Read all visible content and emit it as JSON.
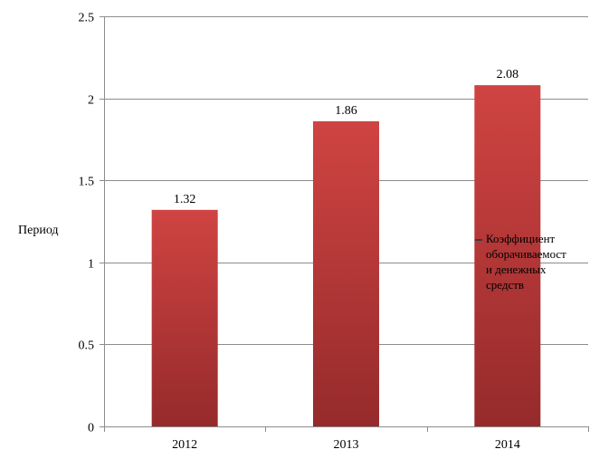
{
  "chart_data": {
    "type": "bar",
    "categories": [
      "2012",
      "2013",
      "2014"
    ],
    "series": [
      {
        "name": "Коэффициент оборачиваемости денежных средств",
        "values": [
          1.32,
          1.86,
          2.08
        ]
      }
    ],
    "data_labels": [
      "1.32",
      "1.86",
      "2.08"
    ],
    "ylabel": "Период",
    "xlabel": "",
    "ylim": [
      0,
      2.5
    ],
    "yticks": [
      0,
      0.5,
      1,
      1.5,
      2,
      2.5
    ],
    "ytick_labels": [
      "0",
      "0.5",
      "1",
      "1.5",
      "2",
      "2.5"
    ],
    "grid": true,
    "legend_position": "right",
    "legend_lines": [
      "Коэффициент",
      "оборачиваемост",
      "и денежных",
      "средств"
    ],
    "bar_color": "#c0393b"
  }
}
